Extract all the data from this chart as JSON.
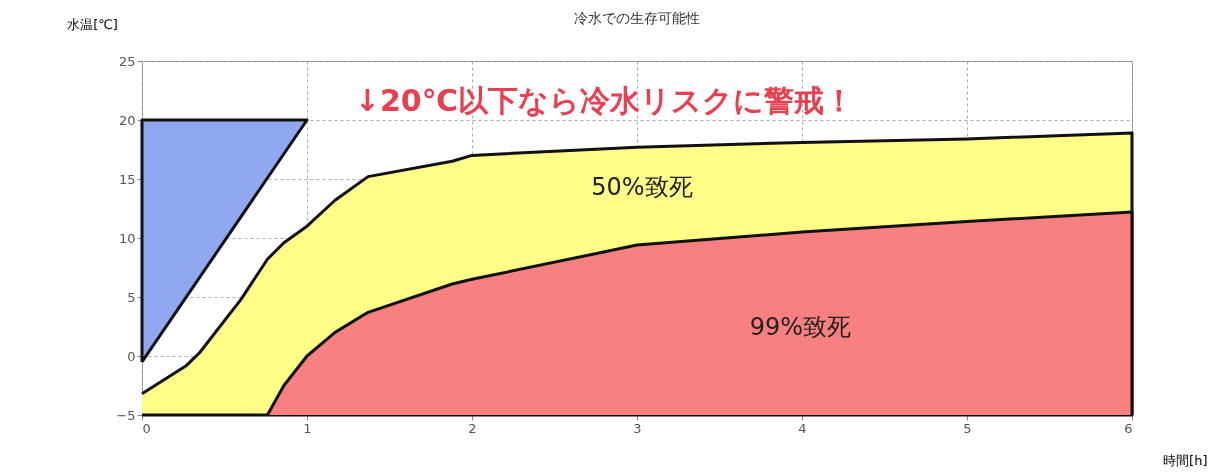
{
  "chart_data": {
    "type": "area",
    "title": "冷水での生存可能性",
    "xlabel": "時間[h]",
    "ylabel": "水温[℃]",
    "series": [
      {
        "color": "#8fa8f0",
        "x": [
          0,
          0,
          1,
          0
        ],
        "values": [
          -0.5,
          20,
          20,
          -0.5
        ]
      },
      {
        "color": "#ffff88",
        "x": [
          0,
          0.27,
          0.35,
          0.6,
          0.76,
          0.86,
          1,
          1.17,
          1.37,
          1.88,
          2,
          3,
          4,
          5,
          6,
          6,
          0
        ],
        "values": [
          -3.2,
          -0.8,
          0.3,
          4.8,
          8.2,
          9.6,
          11,
          13.2,
          15.2,
          16.5,
          17,
          17.7,
          18.1,
          18.4,
          18.9,
          -5,
          -5
        ]
      },
      {
        "color": "#f88080",
        "x": [
          0.76,
          0.86,
          1,
          1.17,
          1.37,
          1.88,
          2,
          3,
          4,
          5,
          6,
          6
        ],
        "values": [
          -5,
          -2.5,
          0,
          2,
          3.7,
          6.1,
          6.5,
          9.4,
          10.5,
          11.4,
          12.2,
          -5
        ]
      }
    ],
    "annotations": [
      "↓20℃以下なら冷水リスクに警戒！",
      "50%致死",
      "99%致死"
    ],
    "xlim": [
      0,
      6
    ],
    "xticks": [
      0,
      1,
      2,
      3,
      4,
      5,
      6
    ],
    "ylim": [
      -5,
      25
    ],
    "yticks": [
      -5,
      0,
      5,
      10,
      15,
      20,
      25
    ],
    "grid": true
  }
}
